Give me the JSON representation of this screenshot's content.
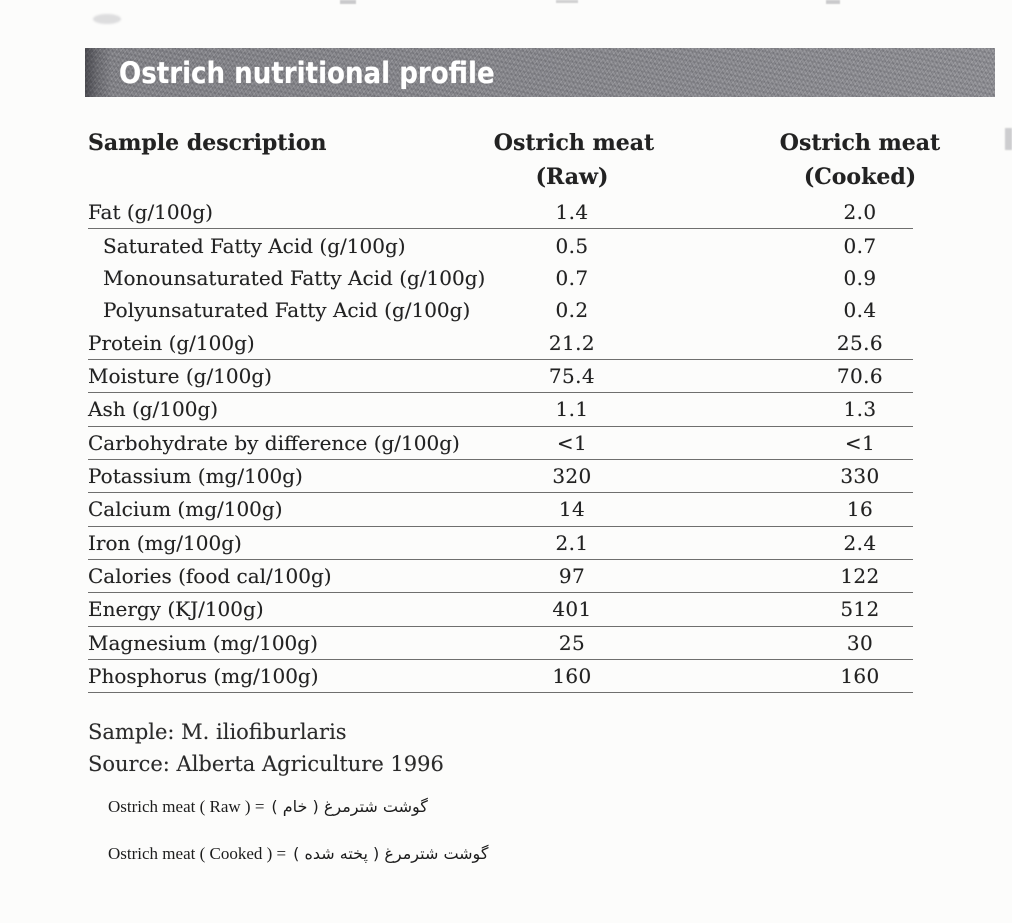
{
  "banner": {
    "title": "Ostrich nutritional profile"
  },
  "table": {
    "header": {
      "sample": "Sample description",
      "raw_line1": "Ostrich meat",
      "raw_line2": "(Raw)",
      "cooked_line1": "Ostrich meat",
      "cooked_line2": "(Cooked)"
    },
    "rows": [
      {
        "label": "Fat (g/100g)",
        "raw": "1.4",
        "cooked": "2.0",
        "indent": false,
        "rule": true
      },
      {
        "label": "Saturated Fatty Acid (g/100g)",
        "raw": "0.5",
        "cooked": "0.7",
        "indent": true,
        "rule": false
      },
      {
        "label": "Monounsaturated Fatty Acid (g/100g)",
        "raw": "0.7",
        "cooked": "0.9",
        "indent": true,
        "rule": false
      },
      {
        "label": "Polyunsaturated Fatty Acid (g/100g)",
        "raw": "0.2",
        "cooked": "0.4",
        "indent": true,
        "rule": false
      },
      {
        "label": "Protein (g/100g)",
        "raw": "21.2",
        "cooked": "25.6",
        "indent": false,
        "rule": true
      },
      {
        "label": "Moisture (g/100g)",
        "raw": "75.4",
        "cooked": "70.6",
        "indent": false,
        "rule": true
      },
      {
        "label": "Ash (g/100g)",
        "raw": "1.1",
        "cooked": "1.3",
        "indent": false,
        "rule": true
      },
      {
        "label": "Carbohydrate by difference (g/100g)",
        "raw": "<1",
        "cooked": "<1",
        "indent": false,
        "rule": true
      },
      {
        "label": "Potassium (mg/100g)",
        "raw": "320",
        "cooked": "330",
        "indent": false,
        "rule": true
      },
      {
        "label": "Calcium (mg/100g)",
        "raw": "14",
        "cooked": "16",
        "indent": false,
        "rule": true
      },
      {
        "label": "Iron (mg/100g)",
        "raw": "2.1",
        "cooked": "2.4",
        "indent": false,
        "rule": true
      },
      {
        "label": "Calories (food cal/100g)",
        "raw": "97",
        "cooked": "122",
        "indent": false,
        "rule": true
      },
      {
        "label": "Energy (KJ/100g)",
        "raw": "401",
        "cooked": "512",
        "indent": false,
        "rule": true
      },
      {
        "label": "Magnesium (mg/100g)",
        "raw": "25",
        "cooked": "30",
        "indent": false,
        "rule": true
      },
      {
        "label": "Phosphorus (mg/100g)",
        "raw": "160",
        "cooked": "160",
        "indent": false,
        "rule": true
      }
    ]
  },
  "notes": {
    "sample": "Sample: M. iliofiburlaris",
    "source": "Source: Alberta Agriculture 1996"
  },
  "legend": [
    {
      "latin": "Ostrich meat ( Raw ) =",
      "farsi": "گوشت شترمرغ ( خام )"
    },
    {
      "latin": "Ostrich meat ( Cooked ) =",
      "farsi": "گوشت شترمرغ ( پخته شده )"
    }
  ],
  "colors": {
    "banner_gray": "#8d8d92",
    "page_background": "#fcfcfb",
    "text": "#222222",
    "rule_line": "#464646"
  }
}
